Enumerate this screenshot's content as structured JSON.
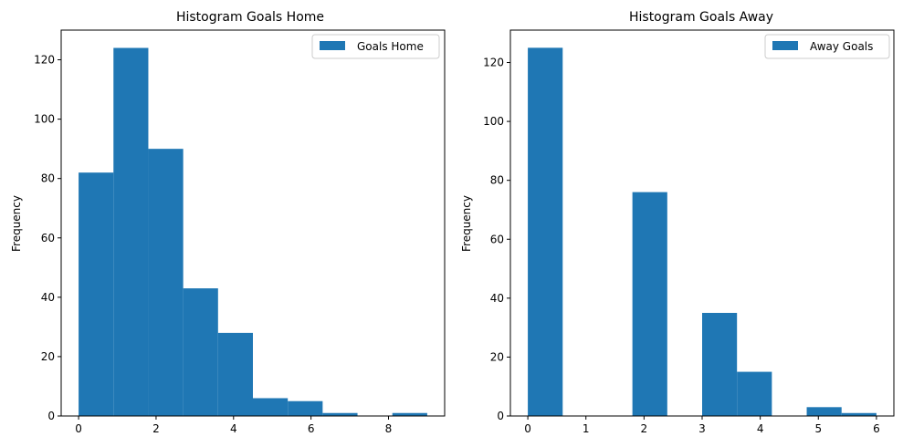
{
  "chart_data": [
    {
      "type": "bar",
      "title": "Histogram Goals Home",
      "xlabel": "",
      "ylabel": "Frequency",
      "xlim": [
        -0.45,
        9.45
      ],
      "ylim": [
        0,
        130
      ],
      "xticks": [
        0,
        2,
        4,
        6,
        8
      ],
      "yticks": [
        0,
        20,
        40,
        60,
        80,
        100,
        120
      ],
      "legend": {
        "placement": "top-right",
        "entries": [
          "Goals Home"
        ]
      },
      "color": "#1f77b4",
      "bin_edges": [
        0,
        0.9,
        1.8,
        2.7,
        3.6,
        4.5,
        5.4,
        6.3,
        7.2,
        8.1,
        9.0
      ],
      "values": [
        82,
        124,
        90,
        43,
        28,
        6,
        5,
        1,
        0,
        1
      ]
    },
    {
      "type": "bar",
      "title": "Histogram Goals Away",
      "xlabel": "",
      "ylabel": "Frequency",
      "xlim": [
        -0.3,
        6.3
      ],
      "ylim": [
        0,
        131
      ],
      "xticks": [
        0,
        1,
        2,
        3,
        4,
        5,
        6
      ],
      "yticks": [
        0,
        20,
        40,
        60,
        80,
        100,
        120
      ],
      "legend": {
        "placement": "top-right",
        "entries": [
          "Away Goals"
        ]
      },
      "color": "#1f77b4",
      "bin_edges": [
        0,
        0.6,
        1.2,
        1.8,
        2.4,
        3.0,
        3.6,
        4.2,
        4.8,
        5.4,
        6.0
      ],
      "values": [
        125,
        0,
        0,
        76,
        0,
        35,
        15,
        0,
        3,
        1
      ]
    }
  ]
}
